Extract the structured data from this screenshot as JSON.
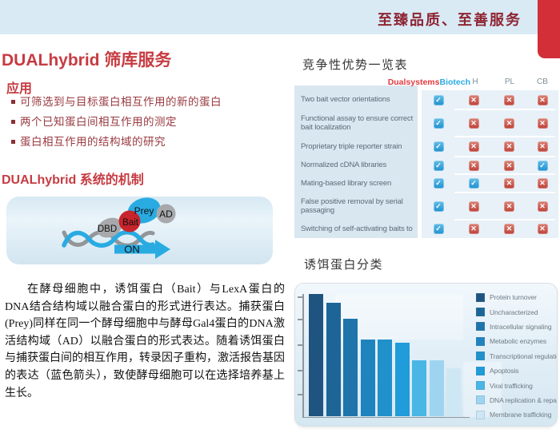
{
  "header": {
    "slogan": "至臻品质、至善服务"
  },
  "colors": {
    "accent_red": "#C63C42",
    "tab_red": "#D22F38",
    "brand_blue": "#29ABE2",
    "header_bg": "#D9EAF5"
  },
  "title": "DUALhybrid 筛库服务",
  "applications": {
    "heading": "应用",
    "items": [
      "可筛选到与目标蛋白相互作用的新的蛋白",
      "两个已知蛋白间相互作用的测定",
      "蛋白相互作用的结构域的研究"
    ]
  },
  "mechanism": {
    "heading": "DUALhybrid 系统的机制",
    "labels": {
      "dbd": "DBD",
      "bait": "Bait",
      "prey": "Prey",
      "ad": "AD",
      "on": "ON"
    },
    "description": "在酵母细胞中，诱饵蛋白（Bait）与LexA蛋白的DNA结合结构域以融合蛋白的形式进行表达。捕获蛋白(Prey)同样在同一个酵母细胞中与酵母Gal4蛋白的DNA激活结构域（AD）以融合蛋白的形式表达。随着诱饵蛋白与捕获蛋白间的相互作用，转录因子重构，激活报告基因的表达（蓝色箭头），致使酵母细胞可以在选择培养基上生长。"
  },
  "comparison": {
    "heading": "竞争性优势一览表",
    "brand": {
      "part1": "Dualsystems",
      "part2": "Biotech"
    },
    "columns": [
      "H",
      "PL",
      "CB"
    ],
    "rows": [
      {
        "label": "Two bait vector orientations",
        "values": [
          "check",
          "cross",
          "cross",
          "cross"
        ]
      },
      {
        "label": "Functional assay to ensure correct bait localization",
        "values": [
          "check",
          "cross",
          "cross",
          "cross"
        ]
      },
      {
        "label": "Proprietary triple reporter strain",
        "values": [
          "check",
          "cross",
          "cross",
          "cross"
        ]
      },
      {
        "label": "Normalized cDNA libraries",
        "values": [
          "check",
          "cross",
          "cross",
          "check"
        ]
      },
      {
        "label": "Mating-based library screen",
        "values": [
          "check",
          "check",
          "cross",
          "cross"
        ]
      },
      {
        "label": "False positive removal by serial passaging",
        "values": [
          "check",
          "cross",
          "cross",
          "cross"
        ]
      },
      {
        "label": "Switching of self-activating baits to",
        "values": [
          "check",
          "cross",
          "cross",
          "cross"
        ]
      }
    ]
  },
  "chart": {
    "heading": "诱饵蛋白分类"
  },
  "chart_data": {
    "type": "bar",
    "title": "诱饵蛋白分类",
    "categories": [
      "Protein turnover",
      "Uncharacterized",
      "Intracellular signaling",
      "Metabolic enzymes",
      "Transcriptional regulation",
      "Apoptosis",
      "Viral trafficking",
      "DNA replication & repair",
      "Membrane trafficking"
    ],
    "values": [
      100,
      93,
      80,
      63,
      63,
      60,
      46,
      46,
      39
    ],
    "value_note": "relative bar heights in percent of tallest bar; no numeric axis labels shown",
    "colors": [
      "#1F5480",
      "#1D6597",
      "#1E74AB",
      "#1F83BE",
      "#2091CB",
      "#1F9CD9",
      "#49B6E6",
      "#9FD4F0",
      "#CEE7F5"
    ],
    "xlabel": "",
    "ylabel": "",
    "legend_position": "right",
    "y_ticks": 5,
    "grid": false
  }
}
